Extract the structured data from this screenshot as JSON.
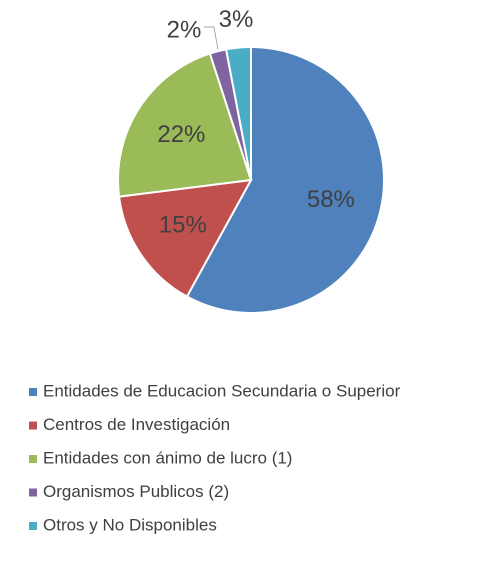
{
  "chart_data": {
    "type": "pie",
    "categories": [
      "Entidades de Educacion Secundaria o Superior",
      "Centros de Investigación",
      "Entidades con ánimo de lucro (1)",
      "Organismos Publicos (2)",
      "Otros y No Disponibles"
    ],
    "values": [
      58,
      15,
      22,
      2,
      3
    ],
    "value_labels": [
      "58%",
      "15%",
      "22%",
      "2%",
      "3%"
    ],
    "colors": [
      "#4f81bd",
      "#c0504d",
      "#9bbb59",
      "#8064a2",
      "#4bacc6"
    ],
    "legend": "bottom"
  }
}
